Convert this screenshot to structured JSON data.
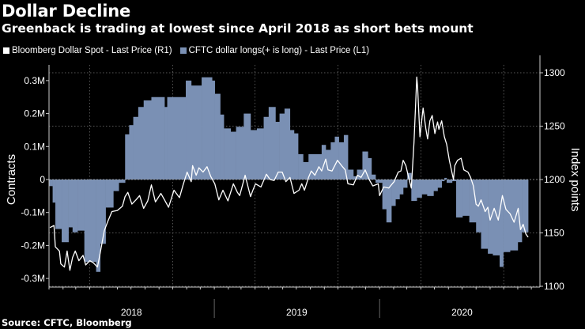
{
  "header": {
    "title": "Dollar Decline",
    "subtitle": "Greenback is trading at lowest since April 2018 as short bets mount"
  },
  "footer": {
    "source": "Source: CFTC, Bloomberg"
  },
  "chart_data": {
    "type": "bar+line",
    "title": "Dollar Decline",
    "subtitle": "Greenback is trading at lowest since April 2018 as short bets mount",
    "legend_placement": "top-left",
    "grid": true,
    "colors": {
      "background": "#000000",
      "line": "#ffffff",
      "bars": "#7a90b4"
    },
    "x_axis": {
      "type": "date",
      "range": [
        "2018-01-01",
        "2020-12-20"
      ],
      "tick_labels": [
        "2018",
        "2019",
        "2020"
      ]
    },
    "y_left": {
      "label": "Contracts",
      "range": [
        -0.32,
        0.34
      ],
      "unit": "M",
      "ticks": [
        0.3,
        0.2,
        0.1,
        0,
        -0.1,
        -0.2,
        -0.3
      ],
      "tick_labels": [
        "0.3M",
        "0.2M",
        "0.1M",
        "0",
        "-0.1M",
        "-0.2M",
        "-0.3M"
      ]
    },
    "y_right": {
      "label": "Index points",
      "range": [
        1100,
        1305
      ],
      "ticks": [
        1300,
        1250,
        1200,
        1150,
        1100
      ],
      "tick_labels": [
        "1300",
        "1250",
        "1200",
        "1150",
        "1100"
      ]
    },
    "series": [
      {
        "name": "Bloomberg Dollar Spot - Last Price (R1)",
        "type": "line",
        "axis": "right",
        "points": [
          [
            "2018-01-03",
            1155
          ],
          [
            "2018-01-12",
            1157
          ],
          [
            "2018-01-15",
            1137
          ],
          [
            "2018-01-24",
            1133
          ],
          [
            "2018-01-27",
            1121
          ],
          [
            "2018-02-04",
            1118
          ],
          [
            "2018-02-10",
            1133
          ],
          [
            "2018-02-16",
            1115
          ],
          [
            "2018-02-22",
            1127
          ],
          [
            "2018-02-28",
            1133
          ],
          [
            "2018-03-08",
            1124
          ],
          [
            "2018-03-17",
            1129
          ],
          [
            "2018-03-23",
            1120
          ],
          [
            "2018-04-01",
            1124
          ],
          [
            "2018-04-09",
            1122
          ],
          [
            "2018-04-18",
            1118
          ],
          [
            "2018-04-24",
            1131
          ],
          [
            "2018-05-03",
            1152
          ],
          [
            "2018-05-11",
            1161
          ],
          [
            "2018-05-20",
            1170
          ],
          [
            "2018-06-01",
            1171
          ],
          [
            "2018-06-12",
            1175
          ],
          [
            "2018-06-18",
            1184
          ],
          [
            "2018-06-24",
            1188
          ],
          [
            "2018-07-03",
            1177
          ],
          [
            "2018-07-12",
            1181
          ],
          [
            "2018-07-20",
            1185
          ],
          [
            "2018-07-29",
            1173
          ],
          [
            "2018-08-07",
            1180
          ],
          [
            "2018-08-15",
            1195
          ],
          [
            "2018-08-24",
            1179
          ],
          [
            "2018-09-05",
            1187
          ],
          [
            "2018-09-13",
            1181
          ],
          [
            "2018-09-22",
            1174
          ],
          [
            "2018-10-04",
            1190
          ],
          [
            "2018-10-16",
            1183
          ],
          [
            "2018-10-24",
            1195
          ],
          [
            "2018-11-02",
            1207
          ],
          [
            "2018-11-11",
            1198
          ],
          [
            "2018-11-14",
            1213
          ],
          [
            "2018-11-22",
            1204
          ],
          [
            "2018-11-28",
            1211
          ],
          [
            "2018-12-07",
            1207
          ],
          [
            "2018-12-16",
            1212
          ],
          [
            "2018-12-24",
            1203
          ],
          [
            "2019-01-02",
            1196
          ],
          [
            "2019-01-11",
            1181
          ],
          [
            "2019-01-20",
            1190
          ],
          [
            "2019-01-31",
            1180
          ],
          [
            "2019-02-12",
            1196
          ],
          [
            "2019-02-21",
            1188
          ],
          [
            "2019-02-26",
            1185
          ],
          [
            "2019-03-10",
            1204
          ],
          [
            "2019-03-22",
            1184
          ],
          [
            "2019-03-28",
            1191
          ],
          [
            "2019-04-02",
            1196
          ],
          [
            "2019-04-14",
            1193
          ],
          [
            "2019-04-26",
            1205
          ],
          [
            "2019-05-04",
            1200
          ],
          [
            "2019-05-13",
            1199
          ],
          [
            "2019-05-22",
            1207
          ],
          [
            "2019-05-31",
            1207
          ],
          [
            "2019-06-08",
            1198
          ],
          [
            "2019-06-17",
            1202
          ],
          [
            "2019-06-26",
            1187
          ],
          [
            "2019-07-07",
            1190
          ],
          [
            "2019-07-13",
            1196
          ],
          [
            "2019-07-19",
            1190
          ],
          [
            "2019-07-28",
            1202
          ],
          [
            "2019-08-03",
            1208
          ],
          [
            "2019-08-11",
            1204
          ],
          [
            "2019-08-20",
            1212
          ],
          [
            "2019-08-26",
            1208
          ],
          [
            "2019-09-04",
            1219
          ],
          [
            "2019-09-09",
            1209
          ],
          [
            "2019-09-18",
            1208
          ],
          [
            "2019-09-30",
            1218
          ],
          [
            "2019-10-09",
            1213
          ],
          [
            "2019-10-17",
            1209
          ],
          [
            "2019-10-23",
            1196
          ],
          [
            "2019-11-04",
            1195
          ],
          [
            "2019-11-13",
            1204
          ],
          [
            "2019-11-21",
            1202
          ],
          [
            "2019-11-30",
            1209
          ],
          [
            "2019-12-09",
            1200
          ],
          [
            "2019-12-17",
            1194
          ],
          [
            "2019-12-29",
            1196
          ],
          [
            "2020-01-01",
            1185
          ],
          [
            "2020-01-10",
            1193
          ],
          [
            "2020-01-21",
            1192
          ],
          [
            "2020-02-02",
            1198
          ],
          [
            "2020-02-11",
            1207
          ],
          [
            "2020-02-17",
            1208
          ],
          [
            "2020-02-22",
            1218
          ],
          [
            "2020-02-28",
            1213
          ],
          [
            "2020-03-05",
            1202
          ],
          [
            "2020-03-11",
            1192
          ],
          [
            "2020-03-17",
            1235
          ],
          [
            "2020-03-23",
            1296
          ],
          [
            "2020-03-25",
            1286
          ],
          [
            "2020-03-30",
            1240
          ],
          [
            "2020-04-06",
            1267
          ],
          [
            "2020-04-12",
            1248
          ],
          [
            "2020-04-16",
            1238
          ],
          [
            "2020-04-21",
            1255
          ],
          [
            "2020-04-26",
            1260
          ],
          [
            "2020-05-02",
            1243
          ],
          [
            "2020-05-08",
            1254
          ],
          [
            "2020-05-11",
            1247
          ],
          [
            "2020-05-17",
            1255
          ],
          [
            "2020-05-23",
            1240
          ],
          [
            "2020-05-28",
            1233
          ],
          [
            "2020-06-03",
            1218
          ],
          [
            "2020-06-12",
            1200
          ],
          [
            "2020-06-15",
            1213
          ],
          [
            "2020-06-21",
            1218
          ],
          [
            "2020-06-29",
            1220
          ],
          [
            "2020-07-05",
            1209
          ],
          [
            "2020-07-14",
            1207
          ],
          [
            "2020-07-20",
            1202
          ],
          [
            "2020-07-26",
            1194
          ],
          [
            "2020-08-01",
            1177
          ],
          [
            "2020-08-06",
            1175
          ],
          [
            "2020-08-12",
            1181
          ],
          [
            "2020-08-21",
            1170
          ],
          [
            "2020-08-27",
            1174
          ],
          [
            "2020-09-01",
            1162
          ],
          [
            "2020-09-10",
            1173
          ],
          [
            "2020-09-19",
            1162
          ],
          [
            "2020-09-28",
            1185
          ],
          [
            "2020-10-06",
            1172
          ],
          [
            "2020-10-15",
            1168
          ],
          [
            "2020-10-24",
            1160
          ],
          [
            "2020-11-02",
            1173
          ],
          [
            "2020-11-07",
            1153
          ],
          [
            "2020-11-13",
            1158
          ],
          [
            "2020-11-19",
            1149
          ],
          [
            "2020-11-24",
            1146
          ]
        ]
      },
      {
        "name": "CFTC dollar longs(+ is long) - Last Price (L1)",
        "type": "bar",
        "axis": "left",
        "unit": "M contracts",
        "end": "2020-11-24",
        "points": [
          [
            "2018-01-01",
            -0.02
          ],
          [
            "2018-01-09",
            -0.07
          ],
          [
            "2018-01-15",
            -0.15
          ],
          [
            "2018-01-29",
            -0.19
          ],
          [
            "2018-02-13",
            -0.145
          ],
          [
            "2018-02-22",
            -0.16
          ],
          [
            "2018-03-05",
            -0.155
          ],
          [
            "2018-03-20",
            -0.25
          ],
          [
            "2018-04-15",
            -0.28
          ],
          [
            "2018-04-24",
            -0.195
          ],
          [
            "2018-05-06",
            -0.085
          ],
          [
            "2018-05-23",
            -0.035
          ],
          [
            "2018-06-04",
            -0.01
          ],
          [
            "2018-06-18",
            0.137
          ],
          [
            "2018-06-27",
            0.165
          ],
          [
            "2018-07-06",
            0.19
          ],
          [
            "2018-07-17",
            0.22
          ],
          [
            "2018-07-29",
            0.24
          ],
          [
            "2018-08-15",
            0.25
          ],
          [
            "2018-09-13",
            0.22
          ],
          [
            "2018-09-19",
            0.25
          ],
          [
            "2018-10-30",
            0.3
          ],
          [
            "2018-11-11",
            0.285
          ],
          [
            "2018-12-04",
            0.31
          ],
          [
            "2018-12-27",
            0.3
          ],
          [
            "2019-01-02",
            0.26
          ],
          [
            "2019-01-14",
            0.197
          ],
          [
            "2019-01-22",
            0.155
          ],
          [
            "2019-02-06",
            0.145
          ],
          [
            "2019-02-18",
            0.16
          ],
          [
            "2019-03-07",
            0.2
          ],
          [
            "2019-03-22",
            0.15
          ],
          [
            "2019-04-05",
            0.155
          ],
          [
            "2019-04-20",
            0.19
          ],
          [
            "2019-05-01",
            0.22
          ],
          [
            "2019-05-16",
            0.175
          ],
          [
            "2019-05-25",
            0.2
          ],
          [
            "2019-06-05",
            0.215
          ],
          [
            "2019-06-17",
            0.15
          ],
          [
            "2019-06-26",
            0.14
          ],
          [
            "2019-07-05",
            0.077
          ],
          [
            "2019-07-16",
            0.053
          ],
          [
            "2019-07-28",
            0.077
          ],
          [
            "2019-08-26",
            0.105
          ],
          [
            "2019-09-04",
            0.09
          ],
          [
            "2019-09-15",
            0.113
          ],
          [
            "2019-09-24",
            0.13
          ],
          [
            "2019-10-03",
            0.113
          ],
          [
            "2019-10-14",
            0.135
          ],
          [
            "2019-10-23",
            0.03
          ],
          [
            "2019-11-04",
            0.01
          ],
          [
            "2019-11-12",
            0.03
          ],
          [
            "2019-11-24",
            0.085
          ],
          [
            "2019-12-06",
            0.065
          ],
          [
            "2019-12-14",
            0.015
          ],
          [
            "2019-12-23",
            -0.01
          ],
          [
            "2020-01-07",
            -0.09
          ],
          [
            "2020-01-16",
            -0.13
          ],
          [
            "2020-01-27",
            -0.08
          ],
          [
            "2020-02-05",
            -0.06
          ],
          [
            "2020-02-14",
            -0.045
          ],
          [
            "2020-02-22",
            -0.025
          ],
          [
            "2020-03-02",
            0.02
          ],
          [
            "2020-03-11",
            -0.065
          ],
          [
            "2020-03-23",
            -0.055
          ],
          [
            "2020-04-03",
            -0.045
          ],
          [
            "2020-04-15",
            -0.05
          ],
          [
            "2020-04-29",
            -0.035
          ],
          [
            "2020-05-08",
            -0.025
          ],
          [
            "2020-05-17",
            -0.005
          ],
          [
            "2020-05-23",
            0.005
          ],
          [
            "2020-05-28",
            -0.01
          ],
          [
            "2020-06-09",
            -0.005
          ],
          [
            "2020-06-18",
            -0.115
          ],
          [
            "2020-07-02",
            -0.11
          ],
          [
            "2020-07-17",
            -0.13
          ],
          [
            "2020-08-01",
            -0.16
          ],
          [
            "2020-08-12",
            -0.21
          ],
          [
            "2020-08-27",
            -0.225
          ],
          [
            "2020-09-07",
            -0.23
          ],
          [
            "2020-09-22",
            -0.265
          ],
          [
            "2020-09-30",
            -0.22
          ],
          [
            "2020-10-15",
            -0.215
          ],
          [
            "2020-11-01",
            -0.19
          ],
          [
            "2020-11-10",
            -0.16
          ]
        ]
      }
    ]
  }
}
